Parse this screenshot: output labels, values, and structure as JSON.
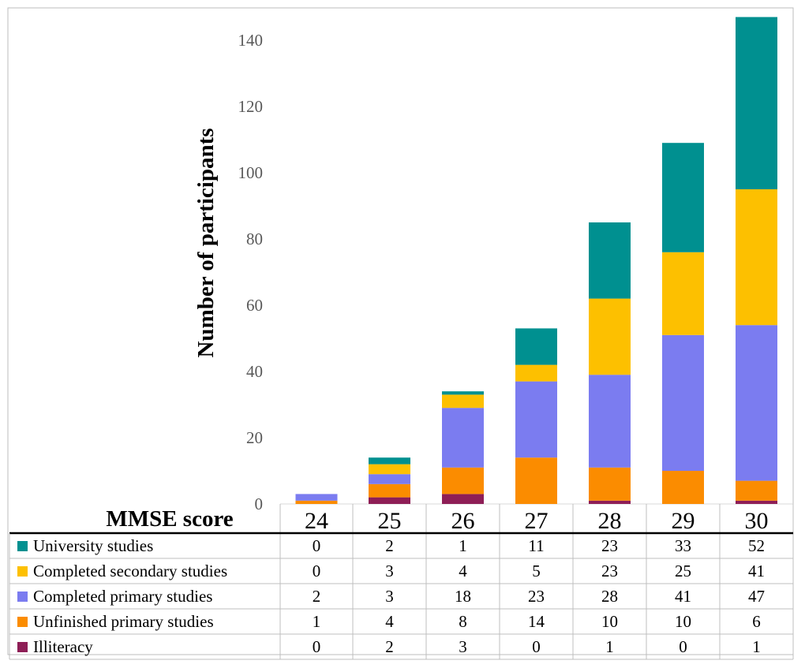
{
  "chart_data": {
    "type": "bar",
    "stacked": true,
    "ylabel": "Number of participants",
    "xlabel": "MMSE score",
    "ylim": [
      0,
      150
    ],
    "yticks": [
      0,
      20,
      40,
      60,
      80,
      100,
      120,
      140
    ],
    "categories": [
      "24",
      "25",
      "26",
      "27",
      "28",
      "29",
      "30"
    ],
    "series": [
      {
        "name": "Illiteracy",
        "color": "#8e1e56",
        "values": [
          0,
          2,
          3,
          0,
          1,
          0,
          1
        ]
      },
      {
        "name": "Unfinished primary studies",
        "color": "#fb8c00",
        "values": [
          1,
          4,
          8,
          14,
          10,
          10,
          6
        ]
      },
      {
        "name": "Completed primary studies",
        "color": "#7b7cf0",
        "values": [
          2,
          3,
          18,
          23,
          28,
          41,
          47
        ]
      },
      {
        "name": "Completed secondary studies",
        "color": "#fdc000",
        "values": [
          0,
          3,
          4,
          5,
          23,
          25,
          41
        ]
      },
      {
        "name": "University studies",
        "color": "#009090",
        "values": [
          0,
          2,
          1,
          11,
          23,
          33,
          52
        ]
      }
    ],
    "table_row_order": [
      "University studies",
      "Completed secondary studies",
      "Completed primary studies",
      "Unfinished primary studies",
      "Illiteracy"
    ]
  }
}
